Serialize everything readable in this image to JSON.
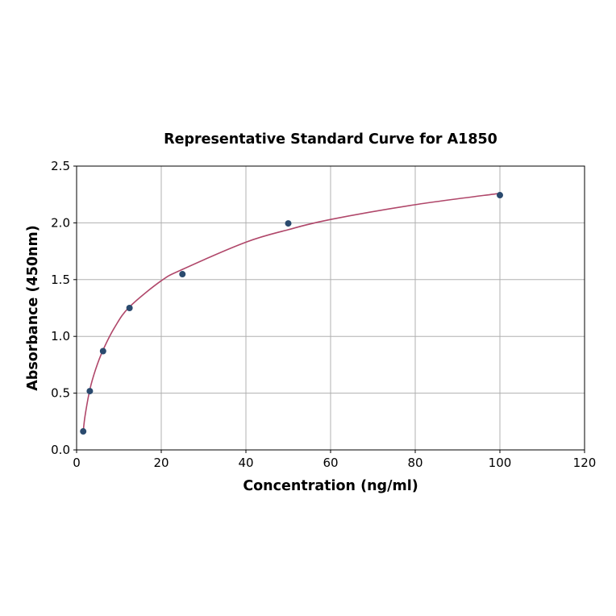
{
  "chart_data": {
    "type": "scatter",
    "title": "Representative Standard Curve for A1850",
    "xlabel": "Concentration (ng/ml)",
    "ylabel": "Absorbance (450nm)",
    "xlim": [
      0,
      120
    ],
    "ylim": [
      0,
      2.5
    ],
    "xticks": [
      "0",
      "20",
      "40",
      "60",
      "80",
      "100",
      "120"
    ],
    "yticks": [
      "0.0",
      "0.5",
      "1.0",
      "1.5",
      "2.0",
      "2.5"
    ],
    "grid": true,
    "points": {
      "x": [
        1.5625,
        3.125,
        6.25,
        12.5,
        25,
        50,
        100
      ],
      "y": [
        0.163,
        0.518,
        0.87,
        1.25,
        1.548,
        1.995,
        2.244
      ],
      "color": "#2a4a6e"
    },
    "fit_curve": {
      "x": [
        1.5625,
        2,
        3.125,
        4.5,
        6.25,
        9,
        12.5,
        20,
        25,
        40,
        50,
        60,
        80,
        100
      ],
      "y": [
        0.16,
        0.3,
        0.53,
        0.71,
        0.88,
        1.08,
        1.26,
        1.49,
        1.59,
        1.83,
        1.94,
        2.03,
        2.16,
        2.26
      ],
      "color": "#b0476a"
    }
  }
}
